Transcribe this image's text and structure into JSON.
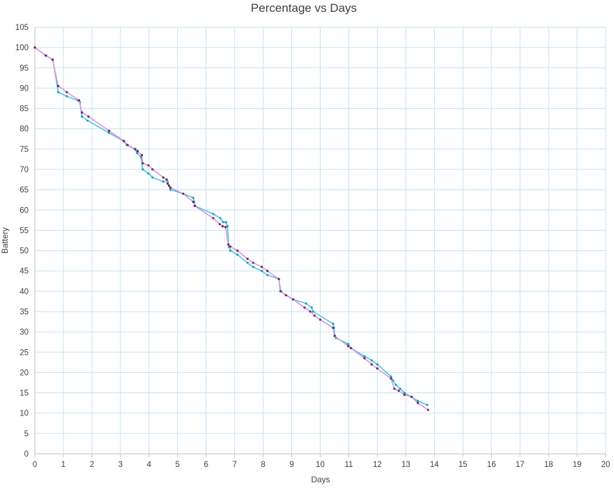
{
  "chart_data": {
    "type": "line",
    "title": "Percentage vs Days",
    "xlabel": "Days",
    "ylabel": "Battery",
    "xlim": [
      0,
      20
    ],
    "ylim": [
      0,
      105
    ],
    "x_ticks": [
      0,
      1,
      2,
      3,
      4,
      5,
      6,
      7,
      8,
      9,
      10,
      11,
      12,
      13,
      14,
      15,
      16,
      17,
      18,
      19,
      20
    ],
    "y_ticks": [
      0,
      5,
      10,
      15,
      20,
      25,
      30,
      35,
      40,
      45,
      50,
      55,
      60,
      65,
      70,
      75,
      80,
      85,
      90,
      95,
      100,
      105
    ],
    "grid": true,
    "legend": "none",
    "series": [
      {
        "color": "#4ec3e6",
        "marker_color": "#1aa0b8",
        "points": [
          [
            0,
            100
          ],
          [
            0.4,
            98
          ],
          [
            0.63,
            97
          ],
          [
            0.82,
            89
          ],
          [
            1.12,
            88
          ],
          [
            1.5,
            87
          ],
          [
            1.58,
            86.5
          ],
          [
            1.65,
            83
          ],
          [
            1.85,
            82
          ],
          [
            2.6,
            79
          ],
          [
            3.1,
            77
          ],
          [
            3.22,
            76
          ],
          [
            3.5,
            75
          ],
          [
            3.58,
            74
          ],
          [
            3.72,
            73
          ],
          [
            3.78,
            70
          ],
          [
            3.98,
            69
          ],
          [
            4.12,
            68
          ],
          [
            4.5,
            67
          ],
          [
            4.65,
            67
          ],
          [
            4.75,
            65
          ],
          [
            5.2,
            64
          ],
          [
            5.55,
            63
          ],
          [
            5.58,
            62
          ],
          [
            5.62,
            61
          ],
          [
            6.25,
            59
          ],
          [
            6.5,
            58
          ],
          [
            6.6,
            57
          ],
          [
            6.7,
            57
          ],
          [
            6.75,
            56
          ],
          [
            6.8,
            51
          ],
          [
            6.85,
            50
          ],
          [
            7.1,
            49
          ],
          [
            7.45,
            47
          ],
          [
            7.65,
            46
          ],
          [
            7.95,
            45
          ],
          [
            8.15,
            44
          ],
          [
            8.55,
            43
          ],
          [
            8.6,
            40
          ],
          [
            9.05,
            38
          ],
          [
            9.5,
            37
          ],
          [
            9.7,
            36
          ],
          [
            9.75,
            35
          ],
          [
            10.45,
            32
          ],
          [
            10.48,
            31
          ],
          [
            10.52,
            29
          ],
          [
            10.55,
            28.5
          ],
          [
            10.98,
            27
          ],
          [
            11.08,
            26
          ],
          [
            11.55,
            24
          ],
          [
            11.8,
            23
          ],
          [
            12.0,
            22
          ],
          [
            12.48,
            19
          ],
          [
            12.55,
            18
          ],
          [
            12.65,
            17
          ],
          [
            12.8,
            16
          ],
          [
            12.95,
            15
          ],
          [
            13.2,
            14
          ],
          [
            13.42,
            13
          ],
          [
            13.75,
            12
          ]
        ]
      },
      {
        "color": "#d894e2",
        "marker_color": "#7a1f5a",
        "points": [
          [
            0,
            100
          ],
          [
            0.38,
            98
          ],
          [
            0.62,
            97
          ],
          [
            0.82,
            90.5
          ],
          [
            1.12,
            89
          ],
          [
            1.55,
            87
          ],
          [
            1.65,
            84
          ],
          [
            1.88,
            83
          ],
          [
            2.6,
            79.5
          ],
          [
            3.12,
            77
          ],
          [
            3.25,
            76
          ],
          [
            3.52,
            75
          ],
          [
            3.6,
            74.5
          ],
          [
            3.75,
            73.5
          ],
          [
            3.78,
            71.5
          ],
          [
            3.98,
            71
          ],
          [
            4.12,
            70
          ],
          [
            4.5,
            68
          ],
          [
            4.62,
            67.5
          ],
          [
            4.65,
            66.5
          ],
          [
            4.7,
            66
          ],
          [
            4.75,
            65.5
          ],
          [
            5.2,
            64
          ],
          [
            5.55,
            62
          ],
          [
            5.6,
            61
          ],
          [
            6.25,
            58
          ],
          [
            6.48,
            56.5
          ],
          [
            6.58,
            56
          ],
          [
            6.68,
            55.8
          ],
          [
            6.78,
            51.5
          ],
          [
            6.85,
            51
          ],
          [
            7.1,
            50
          ],
          [
            7.45,
            48
          ],
          [
            7.65,
            47
          ],
          [
            7.95,
            46
          ],
          [
            8.15,
            45
          ],
          [
            8.55,
            43
          ],
          [
            8.62,
            40
          ],
          [
            8.8,
            39
          ],
          [
            9.05,
            38
          ],
          [
            9.45,
            36
          ],
          [
            9.65,
            35
          ],
          [
            9.8,
            34
          ],
          [
            10.0,
            33
          ],
          [
            10.45,
            31
          ],
          [
            10.5,
            29
          ],
          [
            10.98,
            26.5
          ],
          [
            11.08,
            26
          ],
          [
            11.55,
            23.5
          ],
          [
            11.8,
            22
          ],
          [
            12.0,
            21
          ],
          [
            12.48,
            18.5
          ],
          [
            12.6,
            16
          ],
          [
            12.75,
            15.5
          ],
          [
            12.95,
            14.5
          ],
          [
            13.2,
            14
          ],
          [
            13.42,
            12.5
          ],
          [
            13.78,
            10.8
          ]
        ]
      }
    ]
  }
}
